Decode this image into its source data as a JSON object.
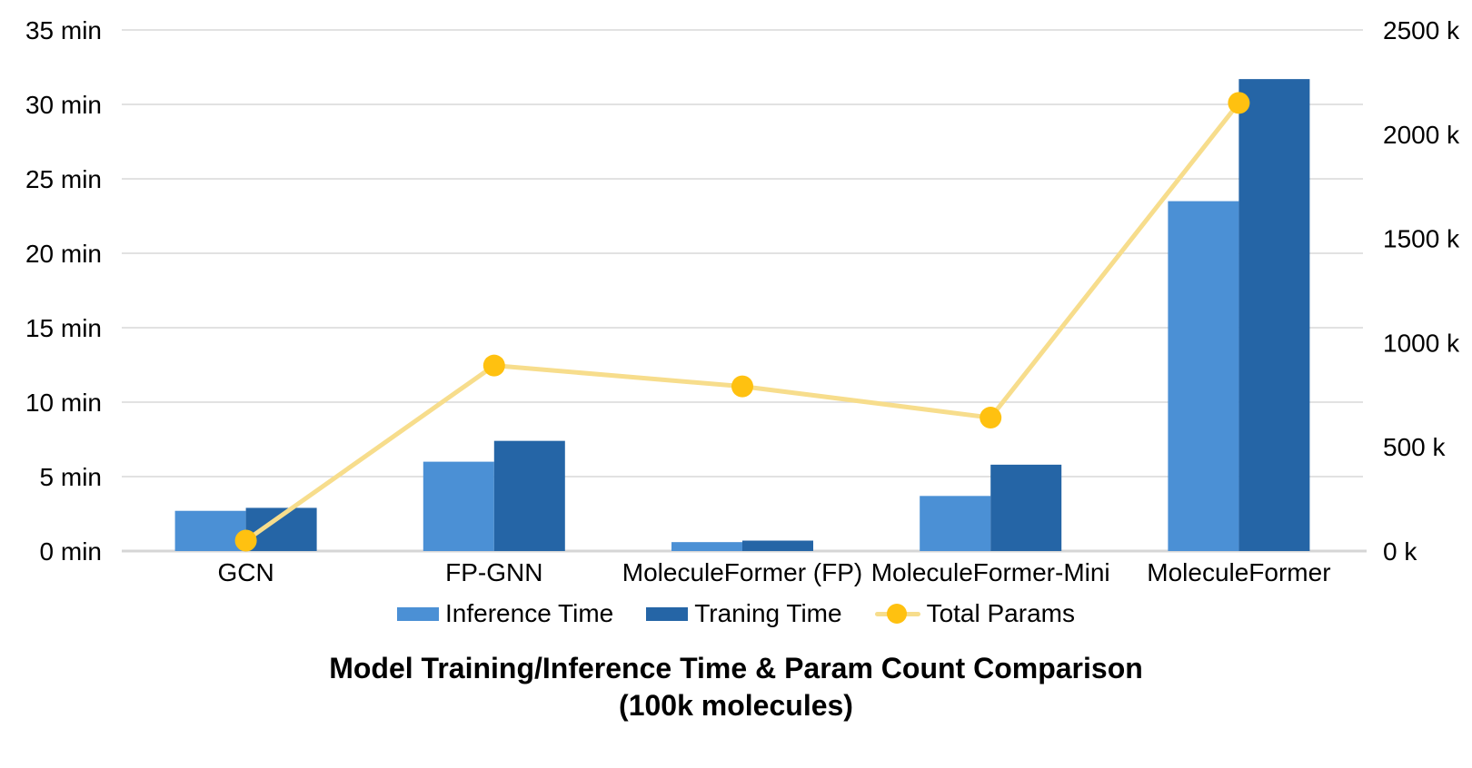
{
  "title": {
    "line1": "Model Training/Inference Time & Param Count Comparison",
    "line2": "(100k molecules)"
  },
  "chart_data": {
    "type": "combo-bar-line",
    "categories": [
      "GCN",
      "FP-GNN",
      "MoleculeFormer (FP)",
      "MoleculeFormer-Mini",
      "MoleculeFormer"
    ],
    "bar_series": [
      {
        "name": "Inference Time",
        "axis": "left",
        "color": "#4B90D5",
        "values_min": [
          2.7,
          6.0,
          0.6,
          3.7,
          23.5
        ]
      },
      {
        "name": "Traning Time",
        "axis": "left",
        "color": "#2565A6",
        "values_min": [
          2.9,
          7.4,
          0.7,
          5.8,
          31.7
        ]
      }
    ],
    "line_series": [
      {
        "name": "Total Params",
        "axis": "right",
        "line_color": "#F7DD8C",
        "marker_color": "#FFC110",
        "values_k": [
          50,
          890,
          790,
          640,
          2150
        ]
      }
    ],
    "left_axis": {
      "unit": "min",
      "min": 0,
      "max": 35,
      "step": 5,
      "tick_values": [
        35,
        30,
        25,
        20,
        15,
        10,
        5,
        0
      ],
      "tick_labels": [
        "35 min",
        "30 min",
        "25 min",
        "20 min",
        "15 min",
        "10 min",
        "5 min",
        "0 min"
      ]
    },
    "right_axis": {
      "unit": "k",
      "min": 0,
      "max": 2500,
      "step": 500,
      "tick_values": [
        2500,
        2000,
        1500,
        1000,
        500,
        0
      ],
      "tick_labels": [
        "2500 k",
        "2000 k",
        "1500 k",
        "1000 k",
        "500 k",
        "0 k"
      ]
    },
    "grid": "horizontal",
    "legend_position": "bottom",
    "colors": {
      "grid": "#D9D9D9",
      "axis_line": "#D6D6D6",
      "text": "#000000",
      "background": "#FFFFFF"
    }
  }
}
